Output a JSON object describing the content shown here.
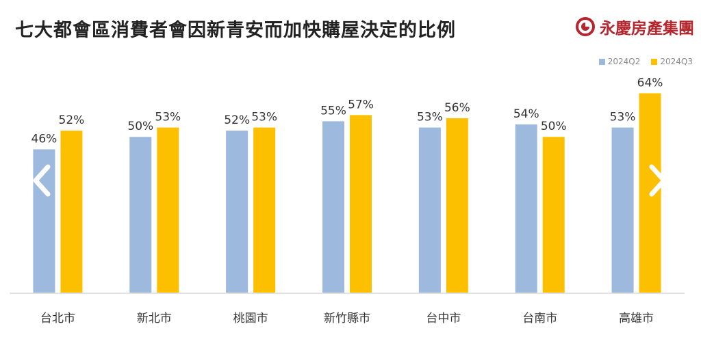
{
  "title": "七大都會區消費者會因新青安而加快購屋決定的比例",
  "logo": {
    "text": "永慶房產集團",
    "icon": "yungching-logo-icon",
    "color": "#b5262e"
  },
  "nav": {
    "prev_icon": "chevron-left-icon",
    "next_icon": "chevron-right-icon"
  },
  "chart_data": {
    "type": "bar",
    "categories": [
      "台北市",
      "新北市",
      "桃園市",
      "新竹縣市",
      "台中市",
      "台南市",
      "高雄市"
    ],
    "series": [
      {
        "name": "2024Q2",
        "color": "#9db9dd",
        "values": [
          46,
          50,
          52,
          55,
          53,
          54,
          53
        ],
        "labels": [
          "46%",
          "50%",
          "52%",
          "55%",
          "53%",
          "54%",
          "53%"
        ]
      },
      {
        "name": "2024Q3",
        "color": "#fdc000",
        "values": [
          52,
          53,
          53,
          57,
          56,
          50,
          64
        ],
        "labels": [
          "52%",
          "53%",
          "53%",
          "57%",
          "56%",
          "50%",
          "64%"
        ]
      }
    ],
    "ylim": [
      0,
      72
    ],
    "grid": false,
    "legend": "top-right"
  }
}
